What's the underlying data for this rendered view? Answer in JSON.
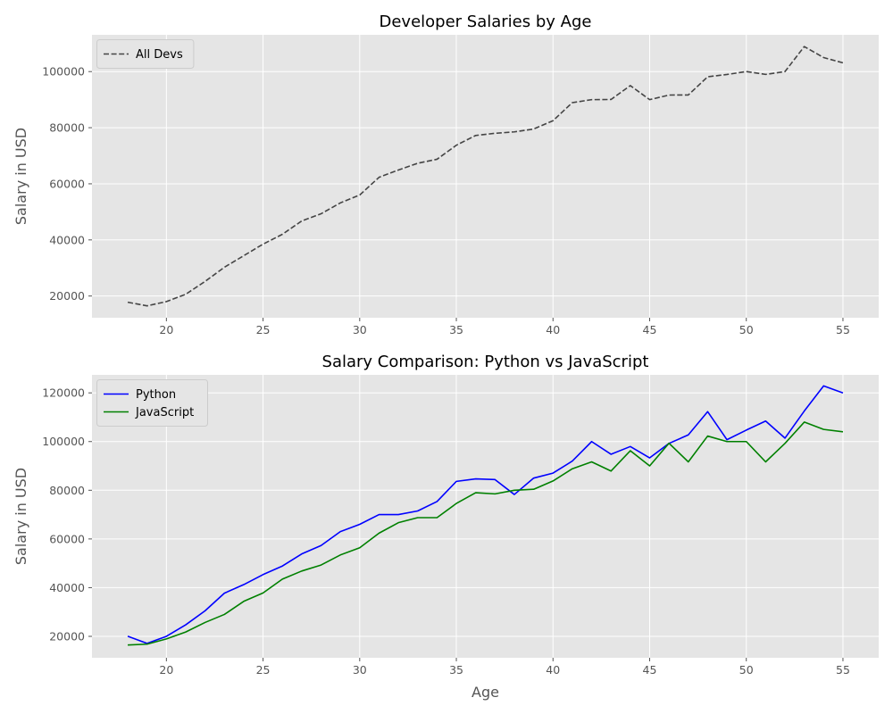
{
  "chart_data": [
    {
      "type": "line",
      "title": "Developer Salaries by Age",
      "xlabel": "",
      "ylabel": "Salary in USD",
      "xlim": [
        16.15,
        56.85
      ],
      "ylim": [
        12260,
        113110
      ],
      "xticks": [
        20,
        25,
        30,
        35,
        40,
        45,
        50,
        55
      ],
      "yticks": [
        20000,
        40000,
        60000,
        80000,
        100000
      ],
      "grid": true,
      "legend": "top-left",
      "x": [
        18,
        19,
        20,
        21,
        22,
        23,
        24,
        25,
        26,
        27,
        28,
        29,
        30,
        31,
        32,
        33,
        34,
        35,
        36,
        37,
        38,
        39,
        40,
        41,
        42,
        43,
        44,
        45,
        46,
        47,
        48,
        49,
        50,
        51,
        52,
        53,
        54,
        55
      ],
      "series": [
        {
          "name": "All Devs",
          "color": "#444444",
          "dash": "dashed",
          "values": [
            17784,
            16500,
            18012,
            20628,
            25206,
            30252,
            34368,
            38496,
            42000,
            46752,
            49320,
            53200,
            56000,
            62316,
            64928,
            67317,
            68748,
            73752,
            77232,
            78000,
            78508,
            79536,
            82488,
            88935,
            90000,
            90056,
            95000,
            90000,
            91633,
            91660,
            98150,
            98964,
            100000,
            98988,
            100000,
            108923,
            105000,
            103117
          ]
        }
      ]
    },
    {
      "type": "line",
      "title": "Salary Comparison: Python vs JavaScript",
      "xlabel": "Age",
      "ylabel": "Salary in USD",
      "xlim": [
        16.15,
        56.85
      ],
      "ylim": [
        11200,
        127400
      ],
      "xticks": [
        20,
        25,
        30,
        35,
        40,
        45,
        50,
        55
      ],
      "yticks": [
        20000,
        40000,
        60000,
        80000,
        100000,
        120000
      ],
      "grid": true,
      "legend": "top-left",
      "x": [
        18,
        19,
        20,
        21,
        22,
        23,
        24,
        25,
        26,
        27,
        28,
        29,
        30,
        31,
        32,
        33,
        34,
        35,
        36,
        37,
        38,
        39,
        40,
        41,
        42,
        43,
        44,
        45,
        46,
        47,
        48,
        49,
        50,
        51,
        52,
        53,
        54,
        55
      ],
      "series": [
        {
          "name": "Python",
          "color": "#0000ff",
          "dash": "solid",
          "values": [
            20046,
            17100,
            20000,
            24744,
            30500,
            37732,
            41247,
            45372,
            48876,
            53850,
            57287,
            63016,
            65998,
            70003,
            70000,
            71496,
            75370,
            83640,
            84666,
            84392,
            78254,
            85000,
            87038,
            91991,
            100000,
            94796,
            97962,
            93302,
            99240,
            102736,
            112285,
            100771,
            104708,
            108423,
            101407,
            112542,
            122870,
            120000
          ]
        },
        {
          "name": "JavaScript",
          "color": "#008000",
          "dash": "solid",
          "values": [
            16446,
            16791,
            18942,
            21780,
            25704,
            29000,
            34372,
            37810,
            43515,
            46823,
            49293,
            53437,
            56373,
            62375,
            66674,
            68745,
            68746,
            74583,
            79000,
            78508,
            79996,
            80403,
            83820,
            88833,
            91660,
            87892,
            96243,
            90000,
            99313,
            91660,
            102264,
            100000,
            100000,
            91660,
            99240,
            108000,
            105000,
            104000
          ]
        }
      ]
    }
  ]
}
